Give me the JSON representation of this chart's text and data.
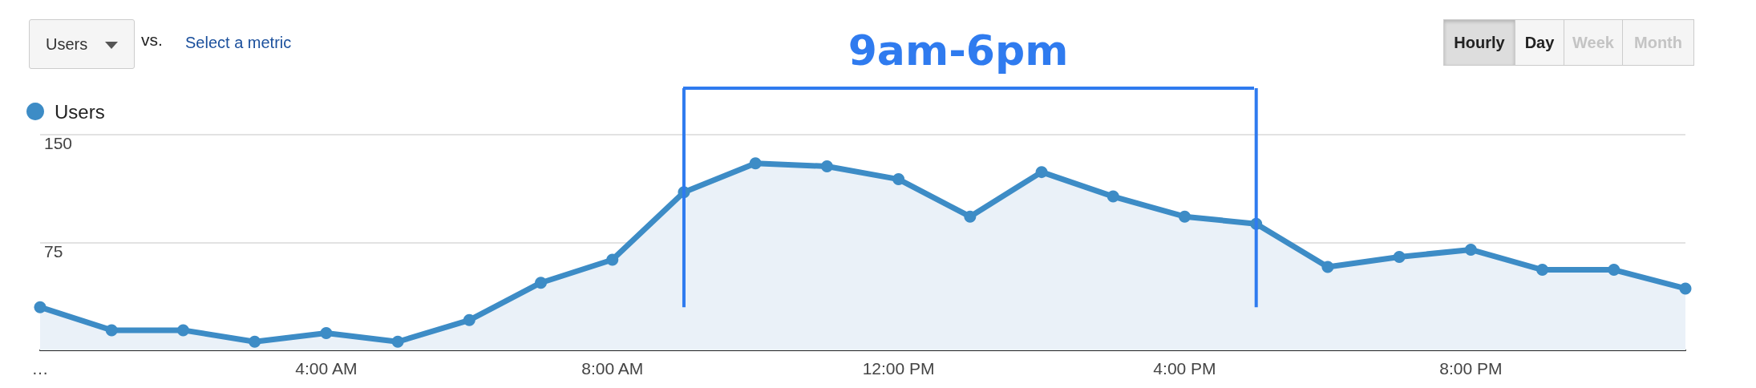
{
  "chart_data": {
    "type": "area",
    "series": [
      {
        "name": "Users",
        "color": "#3d8cc6",
        "values": [
          30,
          14,
          14,
          6,
          12,
          6,
          21,
          47,
          63,
          110,
          130,
          128,
          119,
          93,
          124,
          107,
          93,
          88,
          58,
          65,
          70,
          56,
          56,
          43
        ]
      }
    ],
    "x": [
      0,
      1,
      2,
      3,
      4,
      5,
      6,
      7,
      8,
      9,
      10,
      11,
      12,
      13,
      14,
      15,
      16,
      17,
      18,
      19,
      20,
      21,
      22,
      23
    ],
    "xlim": [
      0,
      23
    ],
    "xticks": [
      {
        "value": 0,
        "label": "…"
      },
      {
        "value": 4,
        "label": "4:00 AM"
      },
      {
        "value": 8,
        "label": "8:00 AM"
      },
      {
        "value": 12,
        "label": "12:00 PM"
      },
      {
        "value": 16,
        "label": "4:00 PM"
      },
      {
        "value": 20,
        "label": "8:00 PM"
      }
    ],
    "ylim": [
      0,
      150
    ],
    "yticks": [
      75,
      150
    ],
    "grid": "y",
    "legend": "top left",
    "marker": "circle",
    "title": "9am-6pm",
    "ref_lines": [
      {
        "axis": "x",
        "value": 9,
        "color": "#2f7bef"
      },
      {
        "axis": "x",
        "value": 17,
        "color": "#2f7bef"
      }
    ],
    "annotations": [
      "Users",
      "vs.",
      "Select a metric",
      "Hourly",
      "Day",
      "Week",
      "Month"
    ]
  }
}
